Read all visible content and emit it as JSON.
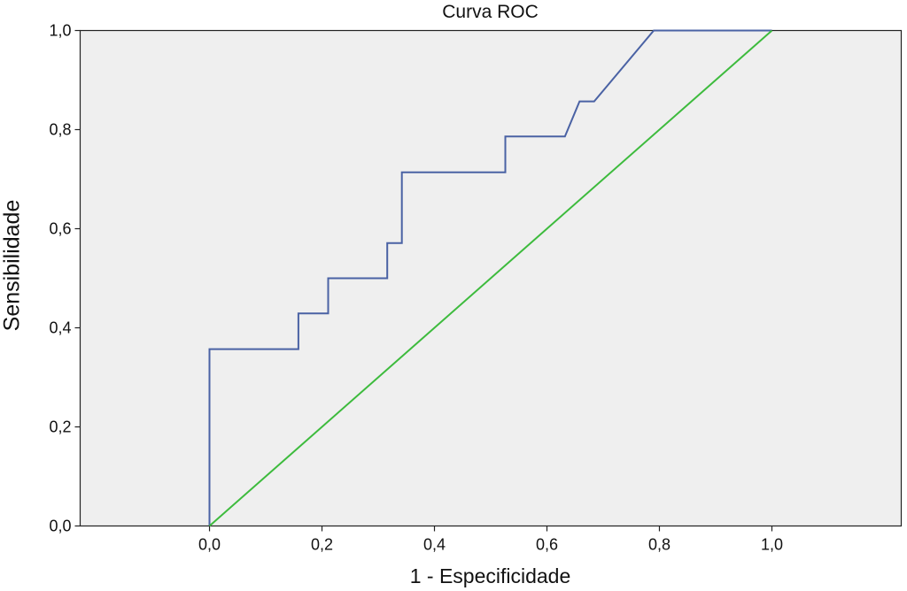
{
  "chart_data": {
    "type": "line",
    "title": "Curva ROC",
    "xlabel": "1 - Especificidade",
    "ylabel": "Sensibilidade",
    "xlim": [
      -0.23,
      1.23
    ],
    "ylim": [
      0,
      1
    ],
    "x_ticks": [
      {
        "value": 0.0,
        "label": "0,0"
      },
      {
        "value": 0.2,
        "label": "0,2"
      },
      {
        "value": 0.4,
        "label": "0,4"
      },
      {
        "value": 0.6,
        "label": "0,6"
      },
      {
        "value": 0.8,
        "label": "0,8"
      },
      {
        "value": 1.0,
        "label": "1,0"
      }
    ],
    "y_ticks": [
      {
        "value": 0.0,
        "label": "0,0"
      },
      {
        "value": 0.2,
        "label": "0,2"
      },
      {
        "value": 0.4,
        "label": "0,4"
      },
      {
        "value": 0.6,
        "label": "0,6"
      },
      {
        "value": 0.8,
        "label": "0,8"
      },
      {
        "value": 1.0,
        "label": "1,0"
      }
    ],
    "grid": false,
    "background_color": "#efefef",
    "series": [
      {
        "color": "#4a62a4",
        "x": [
          0.0,
          0.0,
          0.158,
          0.158,
          0.211,
          0.211,
          0.316,
          0.316,
          0.342,
          0.342,
          0.526,
          0.526,
          0.632,
          0.658,
          0.684,
          0.79,
          1.0
        ],
        "y": [
          0.0,
          0.357,
          0.357,
          0.429,
          0.429,
          0.5,
          0.5,
          0.571,
          0.571,
          0.714,
          0.714,
          0.786,
          0.786,
          0.857,
          0.857,
          1.0,
          1.0
        ]
      },
      {
        "color": "#3dbb3d",
        "x": [
          0.0,
          1.0
        ],
        "y": [
          0.0,
          1.0
        ]
      }
    ]
  }
}
